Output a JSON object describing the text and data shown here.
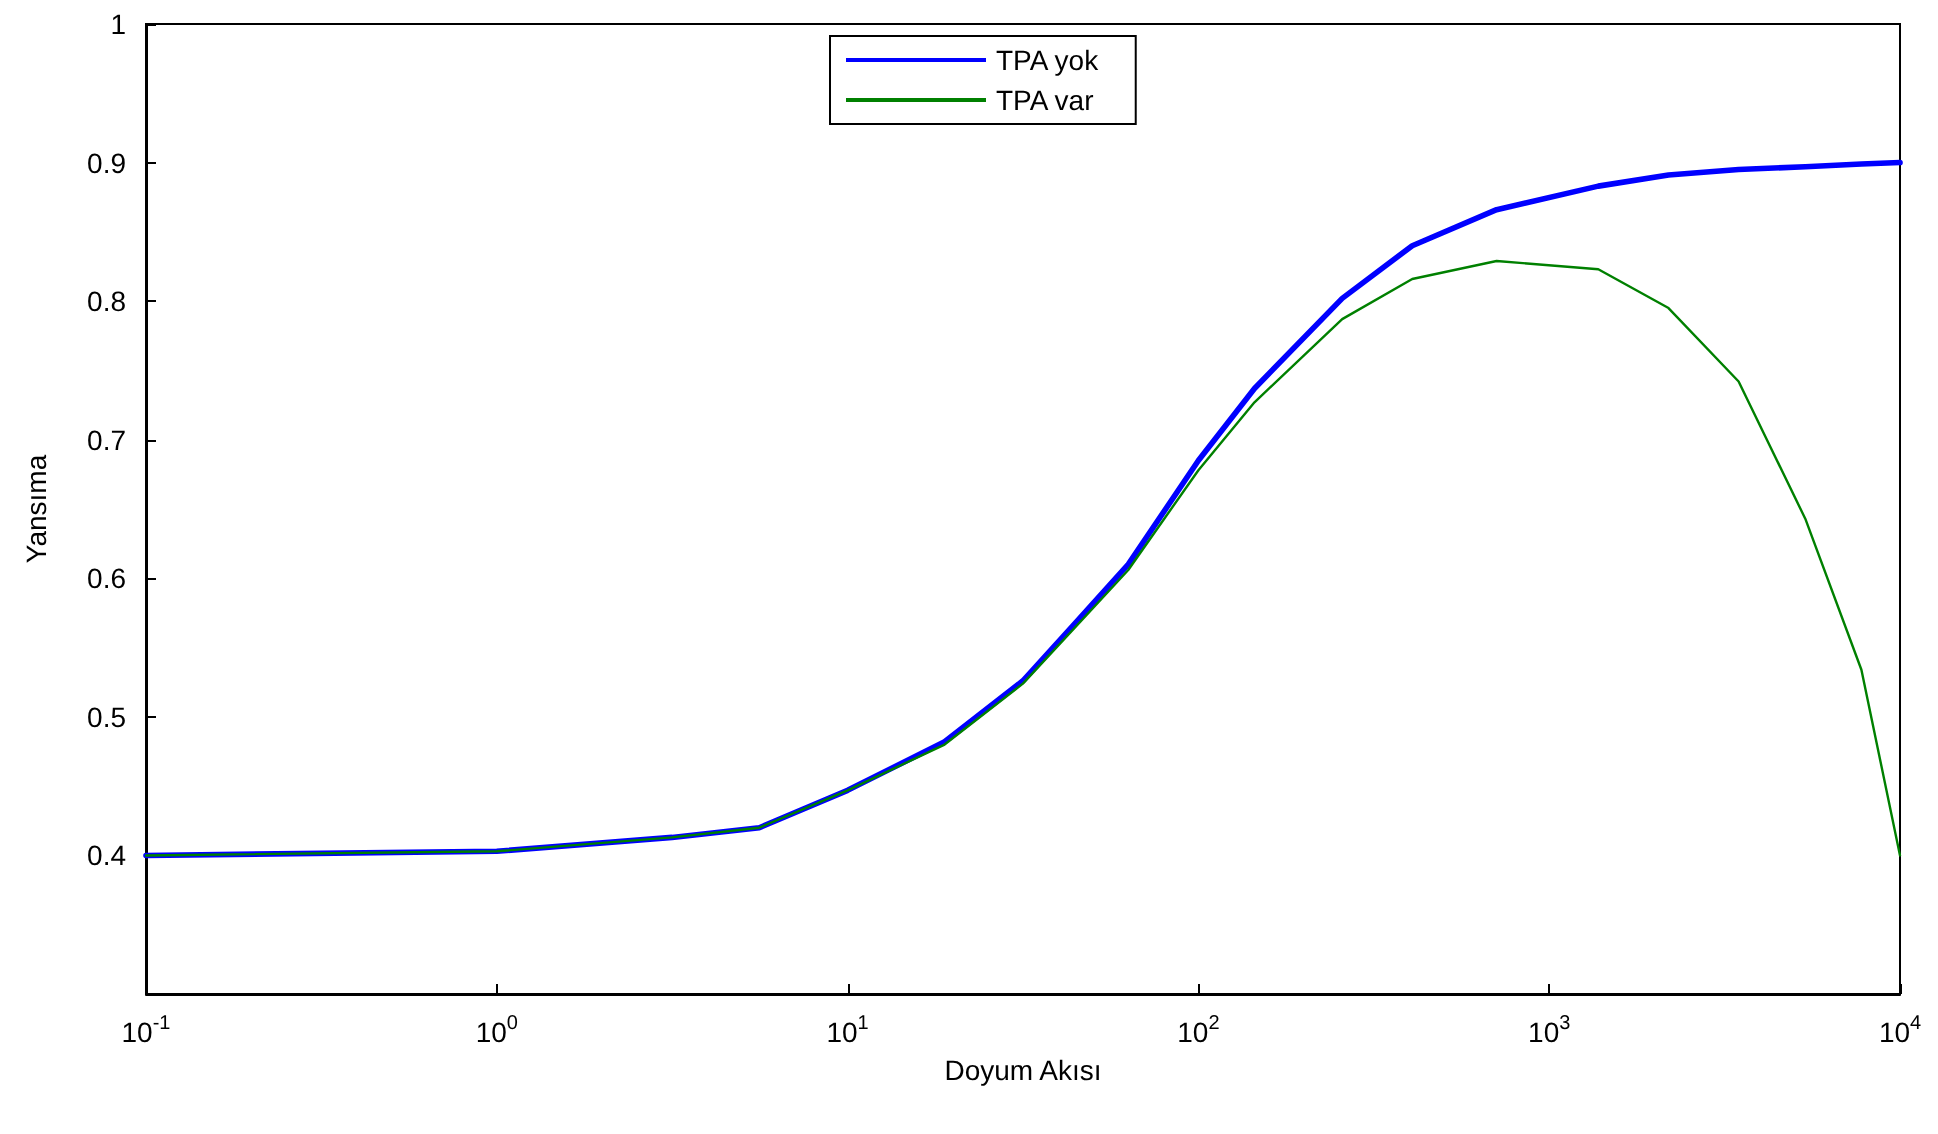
{
  "chart_data": {
    "type": "line",
    "xlabel": "Doyum Akısı",
    "ylabel": "Yansıma",
    "log": "x",
    "xlim": [
      0.1,
      10000
    ],
    "ylim": [
      0.3,
      1
    ],
    "xticks": [
      {
        "value": 0.1,
        "label": "10$^{-1}$"
      },
      {
        "value": 1,
        "label": "10$^{0}$"
      },
      {
        "value": 10,
        "label": "10$^{1}$"
      },
      {
        "value": 100,
        "label": "10$^{2}$"
      },
      {
        "value": 1000,
        "label": "10$^{3}$"
      },
      {
        "value": 10000,
        "label": "10$^{4}$"
      }
    ],
    "yticks": [
      0.4,
      0.5,
      0.6,
      0.7,
      0.8,
      0.9,
      1
    ],
    "grid": false,
    "legend": "top",
    "marker": "none",
    "line_style": "solid",
    "x": [
      0.1,
      1,
      3.16,
      5.6,
      10,
      18.9,
      31.6,
      44.7,
      63.1,
      100,
      144.5,
      257,
      407,
      708,
      1380,
      2188,
      3467,
      5370,
      7762,
      10000
    ],
    "series": [
      {
        "name": "TPA yok",
        "color": "#0000ff",
        "values": [
          0.4,
          0.403,
          0.413,
          0.42,
          0.447,
          0.482,
          0.526,
          0.568,
          0.61,
          0.685,
          0.737,
          0.802,
          0.84,
          0.866,
          0.883,
          0.891,
          0.895,
          0.897,
          0.899,
          0.9
        ]
      },
      {
        "name": "TPA var",
        "color": "#008000",
        "values": [
          0.4,
          0.403,
          0.413,
          0.42,
          0.447,
          0.48,
          0.524,
          0.565,
          0.606,
          0.678,
          0.727,
          0.787,
          0.816,
          0.829,
          0.823,
          0.795,
          0.742,
          0.643,
          0.534,
          0.4
        ]
      }
    ]
  }
}
